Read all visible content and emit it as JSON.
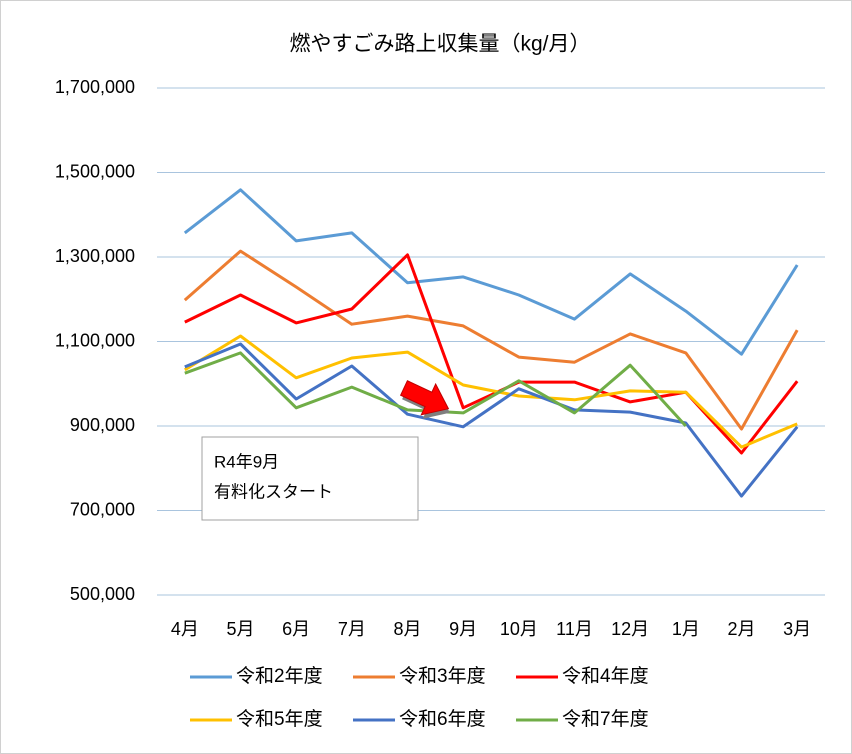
{
  "chart_data": {
    "type": "line",
    "title": "燃やすごみ路上収集量（kg/月）",
    "categories": [
      "4月",
      "5月",
      "6月",
      "7月",
      "8月",
      "9月",
      "10月",
      "11月",
      "12月",
      "1月",
      "2月",
      "3月"
    ],
    "series": [
      {
        "name": "令和2年度",
        "color": "#5b9bd5",
        "values": [
          1357000,
          1459000,
          1338000,
          1357000,
          1239000,
          1253000,
          1210000,
          1153000,
          1260000,
          1172000,
          1070000,
          1281000
        ]
      },
      {
        "name": "令和3年度",
        "color": "#ed7d31",
        "values": [
          1198000,
          1314000,
          1229000,
          1141000,
          1160000,
          1137000,
          1063000,
          1051000,
          1118000,
          1073000,
          893000,
          1127000
        ]
      },
      {
        "name": "令和4年度",
        "color": "#ff0000",
        "values": [
          1146000,
          1210000,
          1144000,
          1177000,
          1305000,
          943000,
          1004000,
          1004000,
          957000,
          980000,
          836000,
          1006000
        ]
      },
      {
        "name": "令和5年度",
        "color": "#ffc000",
        "values": [
          1033000,
          1113000,
          1014000,
          1061000,
          1075000,
          997000,
          971000,
          962000,
          983000,
          980000,
          850000,
          905000
        ]
      },
      {
        "name": "令和6年度",
        "color": "#4472c4",
        "values": [
          1040000,
          1094000,
          964000,
          1042000,
          928000,
          898000,
          988000,
          938000,
          933000,
          907000,
          734000,
          898000
        ]
      },
      {
        "name": "令和7年度",
        "color": "#70ad47",
        "values": [
          1025000,
          1073000,
          943000,
          992000,
          938000,
          931000,
          1007000,
          931000,
          1044000,
          900000,
          null,
          null
        ]
      }
    ],
    "ylim": [
      500000,
      1700000
    ],
    "yticks": [
      {
        "value": 500000,
        "label": "500,000"
      },
      {
        "value": 700000,
        "label": "700,000"
      },
      {
        "value": 900000,
        "label": "900,000"
      },
      {
        "value": 1100000,
        "label": "1,100,000"
      },
      {
        "value": 1300000,
        "label": "1,300,000"
      },
      {
        "value": 1500000,
        "label": "1,500,000"
      },
      {
        "value": 1700000,
        "label": "1,700,000"
      }
    ],
    "grid": true,
    "legend": "bottom",
    "annotation": [
      "R4年9月",
      "有料化スタート"
    ]
  }
}
